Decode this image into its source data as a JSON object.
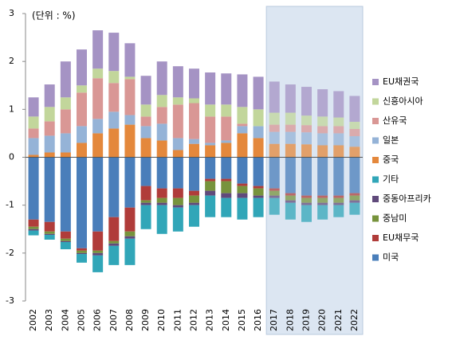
{
  "chart_data": {
    "type": "bar",
    "stacked": true,
    "annotation": "(단위 : %)",
    "categories": [
      "2002",
      "2003",
      "2004",
      "2005",
      "2006",
      "2007",
      "2008",
      "2009",
      "2010",
      "2011",
      "2012",
      "2013",
      "2014",
      "2015",
      "2016",
      "2017",
      "2018",
      "2019",
      "2020",
      "2021",
      "2022"
    ],
    "shaded_range": [
      "2017",
      "2022"
    ],
    "ylim": [
      -3,
      3
    ],
    "yticks": [
      -3,
      -2,
      -1,
      0,
      1,
      2,
      3
    ],
    "series": [
      {
        "name": "EU채권국",
        "color": "#a593c4",
        "values": [
          0.4,
          0.47,
          0.75,
          0.75,
          0.8,
          0.8,
          0.7,
          0.6,
          0.7,
          0.65,
          0.62,
          0.67,
          0.65,
          0.68,
          0.68,
          0.65,
          0.59,
          0.6,
          0.57,
          0.55,
          0.54
        ]
      },
      {
        "name": "신흥아시아",
        "color": "#c2d69b",
        "values": [
          0.25,
          0.3,
          0.25,
          0.15,
          0.2,
          0.25,
          0.05,
          0.25,
          0.25,
          0.15,
          0.1,
          0.25,
          0.25,
          0.35,
          0.35,
          0.25,
          0.25,
          0.2,
          0.2,
          0.18,
          0.15
        ]
      },
      {
        "name": "산유국",
        "color": "#d99795",
        "values": [
          0.2,
          0.3,
          0.5,
          0.7,
          0.85,
          0.6,
          0.75,
          0.2,
          0.35,
          0.7,
          0.75,
          0.55,
          0.5,
          0.05,
          0.0,
          0.15,
          0.15,
          0.15,
          0.15,
          0.15,
          0.15
        ]
      },
      {
        "name": "일본",
        "color": "#95b3d7",
        "values": [
          0.35,
          0.35,
          0.4,
          0.35,
          0.3,
          0.35,
          0.2,
          0.25,
          0.35,
          0.25,
          0.1,
          0.05,
          0.05,
          0.15,
          0.25,
          0.25,
          0.25,
          0.25,
          0.25,
          0.25,
          0.22
        ]
      },
      {
        "name": "중국",
        "color": "#e4883c",
        "values": [
          0.05,
          0.1,
          0.1,
          0.3,
          0.5,
          0.6,
          0.68,
          0.4,
          0.35,
          0.15,
          0.28,
          0.25,
          0.3,
          0.5,
          0.4,
          0.28,
          0.28,
          0.27,
          0.25,
          0.25,
          0.22
        ]
      },
      {
        "name": "기타",
        "color": "#31a6b8",
        "values": [
          -0.1,
          -0.1,
          -0.15,
          -0.18,
          -0.35,
          -0.4,
          -0.55,
          -0.5,
          -0.6,
          -0.5,
          -0.45,
          -0.45,
          -0.4,
          -0.45,
          -0.4,
          -0.35,
          -0.35,
          -0.35,
          -0.3,
          -0.25,
          -0.25
        ]
      },
      {
        "name": "중동아프리카",
        "color": "#604a7b",
        "values": [
          -0.03,
          -0.02,
          -0.02,
          -0.02,
          -0.05,
          -0.05,
          -0.05,
          -0.05,
          -0.05,
          -0.05,
          -0.05,
          -0.1,
          -0.1,
          -0.1,
          -0.05,
          -0.05,
          -0.05,
          -0.05,
          -0.05,
          -0.05,
          -0.05
        ]
      },
      {
        "name": "중남미",
        "color": "#77933c",
        "values": [
          -0.05,
          -0.05,
          -0.05,
          -0.05,
          -0.05,
          -0.05,
          -0.1,
          -0.05,
          -0.1,
          -0.15,
          -0.15,
          -0.2,
          -0.25,
          -0.15,
          -0.15,
          -0.1,
          -0.1,
          -0.1,
          -0.1,
          -0.1,
          -0.1
        ]
      },
      {
        "name": "EU채무국",
        "color": "#b03c3a",
        "values": [
          -0.15,
          -0.2,
          -0.15,
          -0.05,
          -0.4,
          -0.5,
          -0.5,
          -0.3,
          -0.2,
          -0.2,
          -0.1,
          -0.05,
          -0.05,
          -0.05,
          -0.05,
          -0.05,
          -0.05,
          -0.05,
          -0.05,
          -0.05,
          -0.05
        ]
      },
      {
        "name": "미국",
        "color": "#4a7eba",
        "values": [
          -1.3,
          -1.35,
          -1.55,
          -1.9,
          -1.55,
          -1.25,
          -1.05,
          -0.6,
          -0.65,
          -0.65,
          -0.7,
          -0.45,
          -0.45,
          -0.55,
          -0.6,
          -0.65,
          -0.75,
          -0.8,
          -0.8,
          -0.8,
          -0.75
        ]
      }
    ]
  }
}
